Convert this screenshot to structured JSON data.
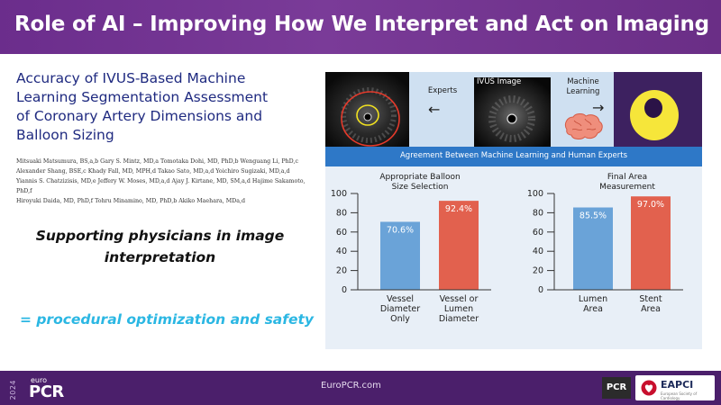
{
  "slide": {
    "title": "Role of AI – Improving How We Interpret and Act on Imaging"
  },
  "paper": {
    "title_lines": [
      "Accuracy of IVUS-Based Machine",
      "Learning Segmentation Assessment",
      "of Coronary Artery Dimensions and",
      "Balloon Sizing"
    ],
    "author_lines": [
      "Mitsuaki Matsumura, BS,a,b Gary S. Mintz, MD,a Tomotaka Dohi, MD, PhD,b Wenguang Li, PhD,c",
      "Alexander Shang, BSE,c Khady Fall, MD, MPH,d Takao Sato, MD,a,d Yoichiro Sugizaki, MD,a,d",
      "Yiannis S. Chatzizisis, MD,e Jeffery W. Moses, MD,a,d Ajay J. Kirtane, MD, SM,a,d Hajime Sakamoto, PhD,f",
      "Hiroyuki Daida, MD, PhD,f Tohru Minamino, MD, PhD,b Akiko Maehara, MDa,d"
    ]
  },
  "statements": {
    "line1": "Supporting physicians in image",
    "line2": "interpretation",
    "line3": "= procedural optimization and safety"
  },
  "figure": {
    "experts_label": "Experts",
    "ivus_label": "IVUS Image",
    "ml_label_line1": "Machine",
    "ml_label_line2": "Learning",
    "band_text": "Agreement Between Machine Learning and Human Experts"
  },
  "chart_data": [
    {
      "type": "bar",
      "title_lines": [
        "Appropriate Balloon",
        "Size Selection"
      ],
      "categories": [
        [
          "Vessel",
          "Diameter",
          "Only"
        ],
        [
          "Vessel or",
          "Lumen",
          "Diameter"
        ]
      ],
      "values": [
        70.6,
        92.4
      ],
      "value_labels": [
        "70.6%",
        "92.4%"
      ],
      "colors": [
        "#6aa3d8",
        "#e2614e"
      ],
      "ylim": [
        0,
        100
      ],
      "yticks": [
        "0",
        "20",
        "40",
        "60",
        "80",
        "100"
      ]
    },
    {
      "type": "bar",
      "title_lines": [
        "Final Area",
        "Measurement"
      ],
      "categories": [
        [
          "Lumen",
          "Area"
        ],
        [
          "Stent",
          "Area"
        ]
      ],
      "values": [
        85.5,
        97.0
      ],
      "value_labels": [
        "85.5%",
        "97.0%"
      ],
      "colors": [
        "#6aa3d8",
        "#e2614e"
      ],
      "ylim": [
        0,
        100
      ],
      "yticks": [
        "0",
        "20",
        "40",
        "60",
        "80",
        "100"
      ]
    }
  ],
  "footer": {
    "year": "2024",
    "euro": "euro",
    "pcr": "PCR",
    "url": "EuroPCR.com",
    "pcr_badge": "PCR",
    "eapci": "EAPCI",
    "eapci_sub": "European Society of Cardiology"
  },
  "colors": {
    "title_bar": "#7a3b98",
    "footer": "#4b1f6b",
    "paper_title": "#1f2a80",
    "accent_cyan": "#2bb7e3",
    "band": "#2e78c7",
    "bar_blue": "#6aa3d8",
    "bar_red": "#e2614e"
  }
}
